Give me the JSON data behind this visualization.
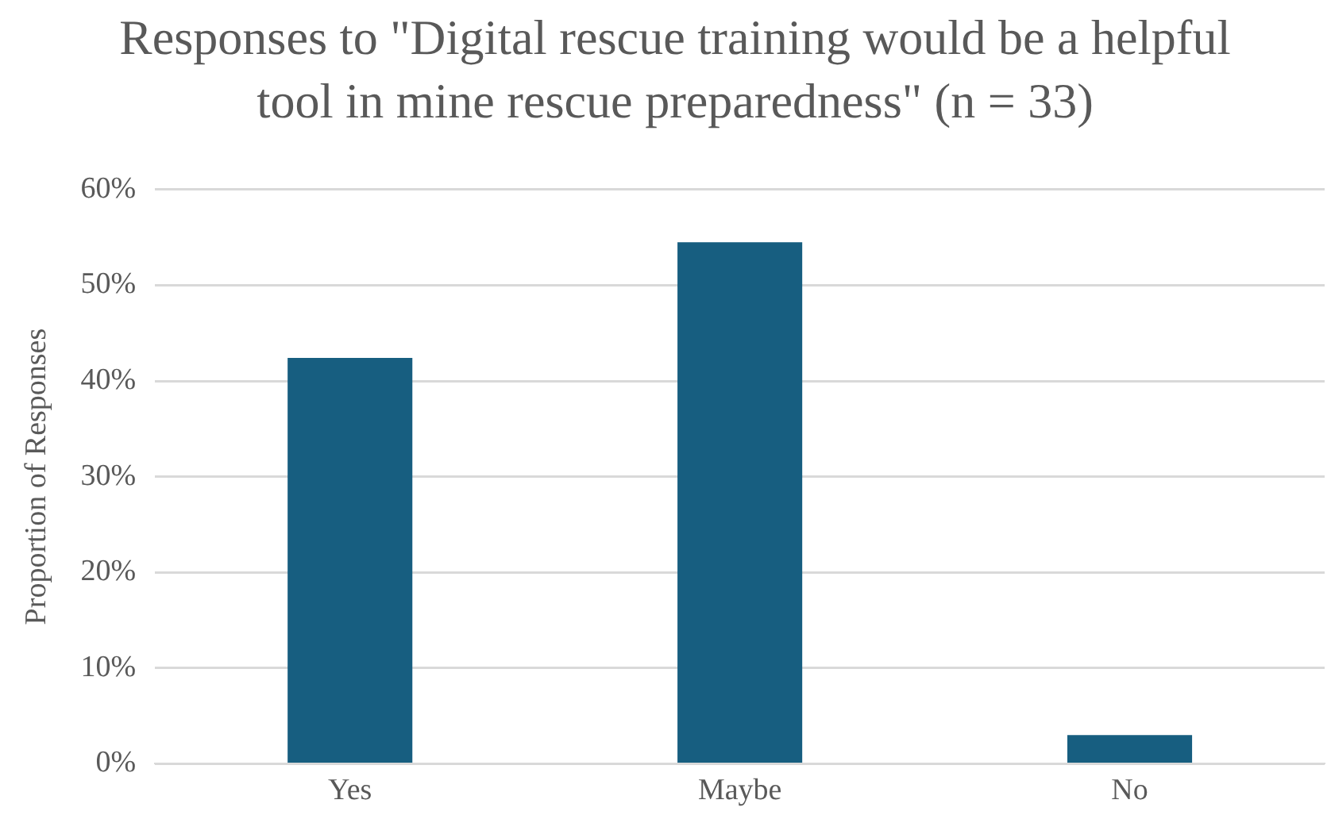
{
  "chart_data": {
    "type": "bar",
    "title": "Responses to \"Digital rescue training would be a helpful tool in mine rescue preparedness\" (n = 33)",
    "ylabel": "Proportion of Responses",
    "categories": [
      "Yes",
      "Maybe",
      "No"
    ],
    "values": [
      42.4,
      54.5,
      3.0
    ],
    "color": "#175e80",
    "ylim": [
      0,
      60
    ],
    "yticks": [
      {
        "value": 0,
        "label": "0%"
      },
      {
        "value": 10,
        "label": "10%"
      },
      {
        "value": 20,
        "label": "20%"
      },
      {
        "value": 30,
        "label": "30%"
      },
      {
        "value": 40,
        "label": "40%"
      },
      {
        "value": 50,
        "label": "50%"
      },
      {
        "value": 60,
        "label": "60%"
      }
    ],
    "grid": "y",
    "legend": false
  }
}
